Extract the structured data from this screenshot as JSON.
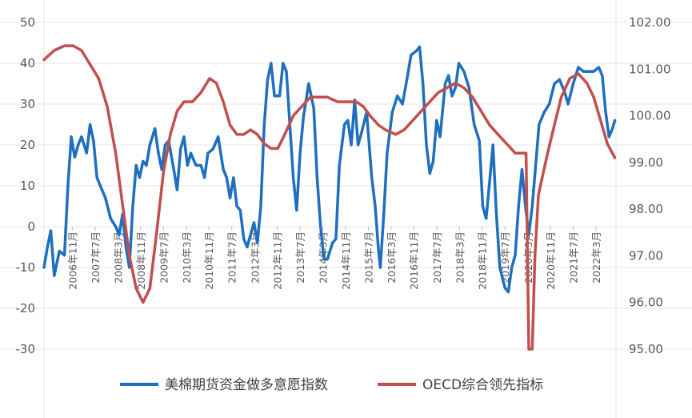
{
  "chart_data": {
    "type": "line",
    "y_left": {
      "ylim": [
        -30,
        50
      ],
      "ticks": [
        "50",
        "40",
        "30",
        "20",
        "10",
        "0",
        "-10",
        "-20",
        "-30"
      ]
    },
    "y_right": {
      "ylim": [
        95.0,
        102.0
      ],
      "ticks": [
        "102.00",
        "101.00",
        "100.00",
        "99.00",
        "98.00",
        "97.00",
        "96.00",
        "95.00"
      ]
    },
    "x_range": [
      2006.0,
      2022.8
    ],
    "x_ticks": [
      {
        "label": "2006年11月",
        "x": 2006.83
      },
      {
        "label": "2007年7月",
        "x": 2007.5
      },
      {
        "label": "2008年3月",
        "x": 2008.17
      },
      {
        "label": "2008年11月",
        "x": 2008.83
      },
      {
        "label": "2009年7月",
        "x": 2009.5
      },
      {
        "label": "2010年3月",
        "x": 2010.17
      },
      {
        "label": "2010年11月",
        "x": 2010.83
      },
      {
        "label": "2011年7月",
        "x": 2011.5
      },
      {
        "label": "2012年3月",
        "x": 2012.17
      },
      {
        "label": "2012年11月",
        "x": 2012.83
      },
      {
        "label": "2013年7月",
        "x": 2013.5
      },
      {
        "label": "2014年3月",
        "x": 2014.17
      },
      {
        "label": "2014年11月",
        "x": 2014.83
      },
      {
        "label": "2015年7月",
        "x": 2015.5
      },
      {
        "label": "2016年3月",
        "x": 2016.17
      },
      {
        "label": "2016年11月",
        "x": 2016.83
      },
      {
        "label": "2017年7月",
        "x": 2017.5
      },
      {
        "label": "2018年3月",
        "x": 2018.17
      },
      {
        "label": "2018年11月",
        "x": 2018.83
      },
      {
        "label": "2019年7月",
        "x": 2019.5
      },
      {
        "label": "2020年3月",
        "x": 2020.17
      },
      {
        "label": "2020年11月",
        "x": 2020.83
      },
      {
        "label": "2021年7月",
        "x": 2021.5
      },
      {
        "label": "2022年3月",
        "x": 2022.17
      }
    ],
    "series": [
      {
        "name": "美棉期货资金做多意愿指数",
        "axis": "left",
        "color": "#1f6fbf",
        "points": [
          [
            2006.0,
            -10
          ],
          [
            2006.1,
            -5
          ],
          [
            2006.2,
            -1
          ],
          [
            2006.3,
            -12
          ],
          [
            2006.45,
            -6
          ],
          [
            2006.6,
            -7
          ],
          [
            2006.7,
            10
          ],
          [
            2006.8,
            22
          ],
          [
            2006.9,
            17
          ],
          [
            2007.0,
            20
          ],
          [
            2007.1,
            22
          ],
          [
            2007.25,
            18
          ],
          [
            2007.35,
            25
          ],
          [
            2007.45,
            21
          ],
          [
            2007.55,
            12
          ],
          [
            2007.65,
            10
          ],
          [
            2007.8,
            7
          ],
          [
            2007.95,
            2
          ],
          [
            2008.1,
            0
          ],
          [
            2008.2,
            -2
          ],
          [
            2008.3,
            3
          ],
          [
            2008.4,
            -5
          ],
          [
            2008.5,
            -10
          ],
          [
            2008.6,
            5
          ],
          [
            2008.7,
            15
          ],
          [
            2008.8,
            12
          ],
          [
            2008.9,
            16
          ],
          [
            2009.0,
            15
          ],
          [
            2009.1,
            20
          ],
          [
            2009.25,
            24
          ],
          [
            2009.35,
            18
          ],
          [
            2009.45,
            14
          ],
          [
            2009.55,
            20
          ],
          [
            2009.65,
            21
          ],
          [
            2009.8,
            14
          ],
          [
            2009.9,
            9
          ],
          [
            2010.0,
            19
          ],
          [
            2010.1,
            22
          ],
          [
            2010.2,
            15
          ],
          [
            2010.3,
            18
          ],
          [
            2010.45,
            15
          ],
          [
            2010.6,
            15
          ],
          [
            2010.7,
            12
          ],
          [
            2010.8,
            18
          ],
          [
            2010.95,
            19
          ],
          [
            2011.1,
            22
          ],
          [
            2011.25,
            14
          ],
          [
            2011.35,
            12
          ],
          [
            2011.45,
            7
          ],
          [
            2011.55,
            12
          ],
          [
            2011.65,
            5
          ],
          [
            2011.75,
            4
          ],
          [
            2011.85,
            -3
          ],
          [
            2011.95,
            -5
          ],
          [
            2012.05,
            -2
          ],
          [
            2012.15,
            1
          ],
          [
            2012.25,
            -4
          ],
          [
            2012.35,
            5
          ],
          [
            2012.45,
            25
          ],
          [
            2012.55,
            36
          ],
          [
            2012.65,
            40
          ],
          [
            2012.75,
            32
          ],
          [
            2012.9,
            32
          ],
          [
            2013.0,
            40
          ],
          [
            2013.1,
            38
          ],
          [
            2013.2,
            25
          ],
          [
            2013.3,
            12
          ],
          [
            2013.4,
            4
          ],
          [
            2013.5,
            18
          ],
          [
            2013.6,
            27
          ],
          [
            2013.75,
            35
          ],
          [
            2013.9,
            29
          ],
          [
            2014.0,
            12
          ],
          [
            2014.1,
            0
          ],
          [
            2014.2,
            -8
          ],
          [
            2014.3,
            -8
          ],
          [
            2014.45,
            -4
          ],
          [
            2014.55,
            -3
          ],
          [
            2014.65,
            15
          ],
          [
            2014.8,
            25
          ],
          [
            2014.9,
            26
          ],
          [
            2015.0,
            20
          ],
          [
            2015.1,
            31
          ],
          [
            2015.2,
            20
          ],
          [
            2015.3,
            23
          ],
          [
            2015.45,
            28
          ],
          [
            2015.6,
            12
          ],
          [
            2015.7,
            5
          ],
          [
            2015.8,
            -6
          ],
          [
            2015.85,
            -10
          ],
          [
            2015.95,
            3
          ],
          [
            2016.05,
            18
          ],
          [
            2016.2,
            28
          ],
          [
            2016.35,
            32
          ],
          [
            2016.5,
            30
          ],
          [
            2016.65,
            37
          ],
          [
            2016.75,
            42
          ],
          [
            2016.9,
            43
          ],
          [
            2017.0,
            44
          ],
          [
            2017.1,
            35
          ],
          [
            2017.2,
            20
          ],
          [
            2017.3,
            13
          ],
          [
            2017.4,
            16
          ],
          [
            2017.5,
            26
          ],
          [
            2017.6,
            22
          ],
          [
            2017.75,
            35
          ],
          [
            2017.85,
            37
          ],
          [
            2017.95,
            32
          ],
          [
            2018.05,
            34
          ],
          [
            2018.15,
            40
          ],
          [
            2018.3,
            38
          ],
          [
            2018.45,
            34
          ],
          [
            2018.6,
            25
          ],
          [
            2018.75,
            21
          ],
          [
            2018.85,
            5
          ],
          [
            2018.95,
            2
          ],
          [
            2019.05,
            11
          ],
          [
            2019.15,
            20
          ],
          [
            2019.25,
            3
          ],
          [
            2019.35,
            -10
          ],
          [
            2019.5,
            -15
          ],
          [
            2019.6,
            -16
          ],
          [
            2019.7,
            -10
          ],
          [
            2019.8,
            -7
          ],
          [
            2019.9,
            5
          ],
          [
            2020.0,
            14
          ],
          [
            2020.1,
            5
          ],
          [
            2020.2,
            -2
          ],
          [
            2020.3,
            5
          ],
          [
            2020.4,
            15
          ],
          [
            2020.5,
            25
          ],
          [
            2020.65,
            28
          ],
          [
            2020.8,
            30
          ],
          [
            2020.95,
            35
          ],
          [
            2021.1,
            36
          ],
          [
            2021.25,
            33
          ],
          [
            2021.35,
            30
          ],
          [
            2021.5,
            35
          ],
          [
            2021.65,
            39
          ],
          [
            2021.8,
            38
          ],
          [
            2021.95,
            38
          ],
          [
            2022.1,
            38
          ],
          [
            2022.25,
            39
          ],
          [
            2022.35,
            37
          ],
          [
            2022.45,
            28
          ],
          [
            2022.55,
            22
          ],
          [
            2022.65,
            24
          ],
          [
            2022.72,
            26
          ]
        ]
      },
      {
        "name": "OECD综合领先指标",
        "axis": "right",
        "color": "#c0504d",
        "points": [
          [
            2006.0,
            101.2
          ],
          [
            2006.3,
            101.4
          ],
          [
            2006.6,
            101.5
          ],
          [
            2006.85,
            101.5
          ],
          [
            2007.1,
            101.4
          ],
          [
            2007.35,
            101.1
          ],
          [
            2007.6,
            100.8
          ],
          [
            2007.85,
            100.2
          ],
          [
            2008.1,
            99.2
          ],
          [
            2008.3,
            98.1
          ],
          [
            2008.5,
            97.0
          ],
          [
            2008.7,
            96.3
          ],
          [
            2008.9,
            96.0
          ],
          [
            2009.1,
            96.3
          ],
          [
            2009.3,
            97.5
          ],
          [
            2009.5,
            98.8
          ],
          [
            2009.7,
            99.6
          ],
          [
            2009.9,
            100.1
          ],
          [
            2010.1,
            100.3
          ],
          [
            2010.35,
            100.3
          ],
          [
            2010.6,
            100.5
          ],
          [
            2010.85,
            100.8
          ],
          [
            2011.05,
            100.7
          ],
          [
            2011.25,
            100.3
          ],
          [
            2011.45,
            99.8
          ],
          [
            2011.65,
            99.6
          ],
          [
            2011.85,
            99.6
          ],
          [
            2012.05,
            99.7
          ],
          [
            2012.25,
            99.6
          ],
          [
            2012.45,
            99.4
          ],
          [
            2012.65,
            99.3
          ],
          [
            2012.85,
            99.3
          ],
          [
            2013.05,
            99.6
          ],
          [
            2013.3,
            100.0
          ],
          [
            2013.55,
            100.2
          ],
          [
            2013.8,
            100.4
          ],
          [
            2014.0,
            100.4
          ],
          [
            2014.3,
            100.4
          ],
          [
            2014.6,
            100.3
          ],
          [
            2014.9,
            100.3
          ],
          [
            2015.15,
            100.3
          ],
          [
            2015.35,
            100.2
          ],
          [
            2015.55,
            100.0
          ],
          [
            2015.8,
            99.8
          ],
          [
            2016.0,
            99.7
          ],
          [
            2016.3,
            99.6
          ],
          [
            2016.55,
            99.7
          ],
          [
            2016.8,
            99.9
          ],
          [
            2017.05,
            100.1
          ],
          [
            2017.3,
            100.3
          ],
          [
            2017.55,
            100.5
          ],
          [
            2017.8,
            100.6
          ],
          [
            2018.05,
            100.7
          ],
          [
            2018.3,
            100.6
          ],
          [
            2018.55,
            100.4
          ],
          [
            2018.8,
            100.1
          ],
          [
            2019.05,
            99.8
          ],
          [
            2019.3,
            99.6
          ],
          [
            2019.55,
            99.4
          ],
          [
            2019.8,
            99.2
          ],
          [
            2020.05,
            99.2
          ],
          [
            2020.12,
            99.2
          ],
          [
            2020.17,
            96.5
          ],
          [
            2020.2,
            95.0
          ],
          [
            2020.3,
            95.0
          ],
          [
            2020.38,
            97.0
          ],
          [
            2020.48,
            98.3
          ],
          [
            2020.6,
            98.7
          ],
          [
            2020.75,
            99.2
          ],
          [
            2020.95,
            99.8
          ],
          [
            2021.15,
            100.4
          ],
          [
            2021.4,
            100.8
          ],
          [
            2021.65,
            100.9
          ],
          [
            2021.9,
            100.7
          ],
          [
            2022.1,
            100.4
          ],
          [
            2022.3,
            99.9
          ],
          [
            2022.5,
            99.4
          ],
          [
            2022.72,
            99.1
          ]
        ]
      }
    ],
    "legend": {
      "placement": "bottom"
    },
    "grid": true
  }
}
